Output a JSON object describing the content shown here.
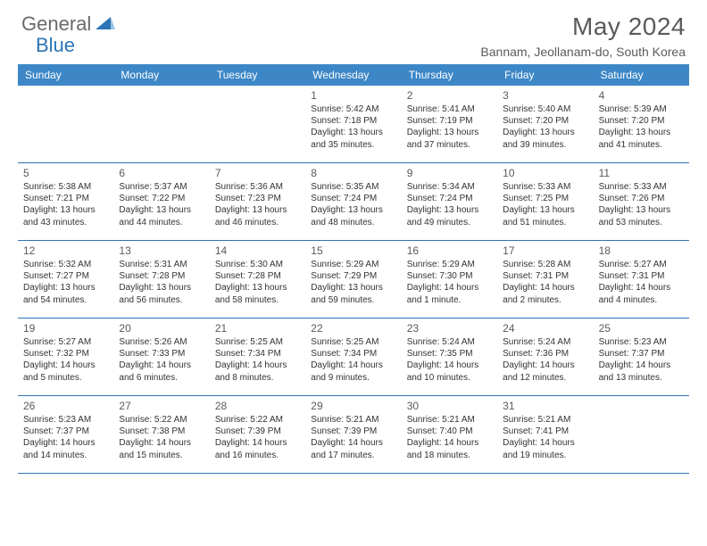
{
  "logo": {
    "text1": "General",
    "text2": "Blue"
  },
  "title": "May 2024",
  "location": "Bannam, Jeollanam-do, South Korea",
  "colors": {
    "header_bg": "#3d87c7",
    "header_text": "#ffffff",
    "border": "#2e74b5",
    "body_text": "#333333",
    "muted_text": "#5a5a5a",
    "logo_gray": "#6a6a6a",
    "logo_blue": "#2e74b5",
    "page_bg": "#ffffff"
  },
  "daynames": [
    "Sunday",
    "Monday",
    "Tuesday",
    "Wednesday",
    "Thursday",
    "Friday",
    "Saturday"
  ],
  "layout": {
    "first_weekday_index": 3,
    "days_in_month": 31,
    "cols": 7
  },
  "fonts": {
    "title_size": 28,
    "location_size": 14,
    "dayname_size": 12,
    "daynum_size": 12,
    "body_size": 10
  },
  "days": [
    {
      "n": 1,
      "sunrise": "5:42 AM",
      "sunset": "7:18 PM",
      "daylight": "13 hours and 35 minutes."
    },
    {
      "n": 2,
      "sunrise": "5:41 AM",
      "sunset": "7:19 PM",
      "daylight": "13 hours and 37 minutes."
    },
    {
      "n": 3,
      "sunrise": "5:40 AM",
      "sunset": "7:20 PM",
      "daylight": "13 hours and 39 minutes."
    },
    {
      "n": 4,
      "sunrise": "5:39 AM",
      "sunset": "7:20 PM",
      "daylight": "13 hours and 41 minutes."
    },
    {
      "n": 5,
      "sunrise": "5:38 AM",
      "sunset": "7:21 PM",
      "daylight": "13 hours and 43 minutes."
    },
    {
      "n": 6,
      "sunrise": "5:37 AM",
      "sunset": "7:22 PM",
      "daylight": "13 hours and 44 minutes."
    },
    {
      "n": 7,
      "sunrise": "5:36 AM",
      "sunset": "7:23 PM",
      "daylight": "13 hours and 46 minutes."
    },
    {
      "n": 8,
      "sunrise": "5:35 AM",
      "sunset": "7:24 PM",
      "daylight": "13 hours and 48 minutes."
    },
    {
      "n": 9,
      "sunrise": "5:34 AM",
      "sunset": "7:24 PM",
      "daylight": "13 hours and 49 minutes."
    },
    {
      "n": 10,
      "sunrise": "5:33 AM",
      "sunset": "7:25 PM",
      "daylight": "13 hours and 51 minutes."
    },
    {
      "n": 11,
      "sunrise": "5:33 AM",
      "sunset": "7:26 PM",
      "daylight": "13 hours and 53 minutes."
    },
    {
      "n": 12,
      "sunrise": "5:32 AM",
      "sunset": "7:27 PM",
      "daylight": "13 hours and 54 minutes."
    },
    {
      "n": 13,
      "sunrise": "5:31 AM",
      "sunset": "7:28 PM",
      "daylight": "13 hours and 56 minutes."
    },
    {
      "n": 14,
      "sunrise": "5:30 AM",
      "sunset": "7:28 PM",
      "daylight": "13 hours and 58 minutes."
    },
    {
      "n": 15,
      "sunrise": "5:29 AM",
      "sunset": "7:29 PM",
      "daylight": "13 hours and 59 minutes."
    },
    {
      "n": 16,
      "sunrise": "5:29 AM",
      "sunset": "7:30 PM",
      "daylight": "14 hours and 1 minute."
    },
    {
      "n": 17,
      "sunrise": "5:28 AM",
      "sunset": "7:31 PM",
      "daylight": "14 hours and 2 minutes."
    },
    {
      "n": 18,
      "sunrise": "5:27 AM",
      "sunset": "7:31 PM",
      "daylight": "14 hours and 4 minutes."
    },
    {
      "n": 19,
      "sunrise": "5:27 AM",
      "sunset": "7:32 PM",
      "daylight": "14 hours and 5 minutes."
    },
    {
      "n": 20,
      "sunrise": "5:26 AM",
      "sunset": "7:33 PM",
      "daylight": "14 hours and 6 minutes."
    },
    {
      "n": 21,
      "sunrise": "5:25 AM",
      "sunset": "7:34 PM",
      "daylight": "14 hours and 8 minutes."
    },
    {
      "n": 22,
      "sunrise": "5:25 AM",
      "sunset": "7:34 PM",
      "daylight": "14 hours and 9 minutes."
    },
    {
      "n": 23,
      "sunrise": "5:24 AM",
      "sunset": "7:35 PM",
      "daylight": "14 hours and 10 minutes."
    },
    {
      "n": 24,
      "sunrise": "5:24 AM",
      "sunset": "7:36 PM",
      "daylight": "14 hours and 12 minutes."
    },
    {
      "n": 25,
      "sunrise": "5:23 AM",
      "sunset": "7:37 PM",
      "daylight": "14 hours and 13 minutes."
    },
    {
      "n": 26,
      "sunrise": "5:23 AM",
      "sunset": "7:37 PM",
      "daylight": "14 hours and 14 minutes."
    },
    {
      "n": 27,
      "sunrise": "5:22 AM",
      "sunset": "7:38 PM",
      "daylight": "14 hours and 15 minutes."
    },
    {
      "n": 28,
      "sunrise": "5:22 AM",
      "sunset": "7:39 PM",
      "daylight": "14 hours and 16 minutes."
    },
    {
      "n": 29,
      "sunrise": "5:21 AM",
      "sunset": "7:39 PM",
      "daylight": "14 hours and 17 minutes."
    },
    {
      "n": 30,
      "sunrise": "5:21 AM",
      "sunset": "7:40 PM",
      "daylight": "14 hours and 18 minutes."
    },
    {
      "n": 31,
      "sunrise": "5:21 AM",
      "sunset": "7:41 PM",
      "daylight": "14 hours and 19 minutes."
    }
  ],
  "labels": {
    "sunrise": "Sunrise:",
    "sunset": "Sunset:",
    "daylight": "Daylight:"
  }
}
